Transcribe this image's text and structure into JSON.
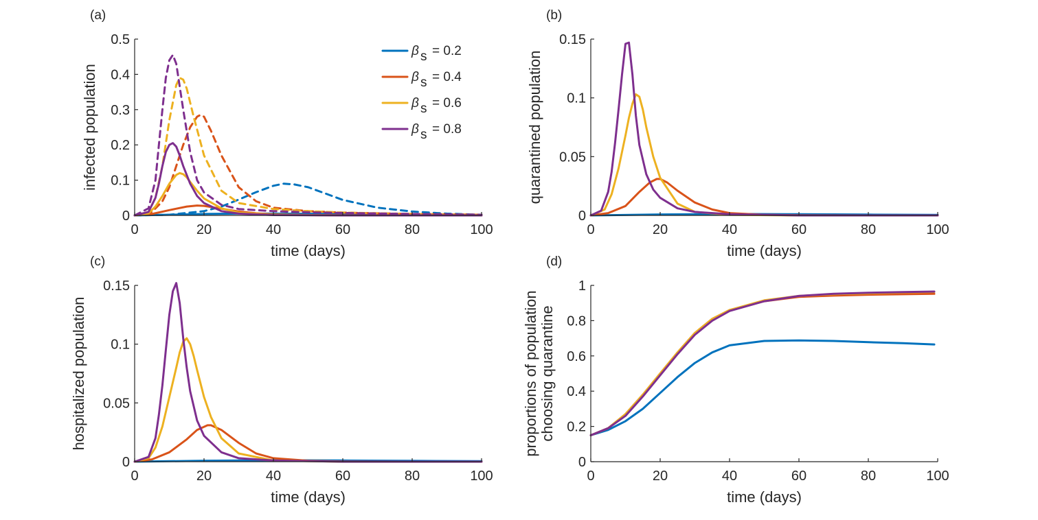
{
  "colors": {
    "series": [
      "#0072BD",
      "#D95319",
      "#EDB120",
      "#7E2F8E"
    ],
    "axis": "#262626"
  },
  "legend": {
    "symbol": "β",
    "subscript": "s",
    "entries": [
      "= 0.2",
      "= 0.4",
      "= 0.6",
      "= 0.8"
    ]
  },
  "chart_data": [
    {
      "id": "a",
      "panel_label": "(a)",
      "type": "line",
      "xlabel": "time (days)",
      "ylabel": "infected population",
      "xlim": [
        0,
        100
      ],
      "ylim": [
        0,
        0.5
      ],
      "xticks": [
        0,
        20,
        40,
        60,
        80,
        100
      ],
      "yticks": [
        0,
        0.1,
        0.2,
        0.3,
        0.4,
        0.5
      ],
      "ytick_labels": [
        "0",
        "0.1",
        "0.2",
        "0.3",
        "0.4",
        "0.5"
      ],
      "series": [
        {
          "name": "βs = 0.2",
          "style": "solid",
          "x": [
            0,
            5,
            10,
            15,
            20,
            30,
            40,
            60,
            80,
            100
          ],
          "y": [
            0,
            0.001,
            0.002,
            0.003,
            0.004,
            0.005,
            0.005,
            0.004,
            0.003,
            0.002
          ]
        },
        {
          "name": "βs = 0.2",
          "style": "dashed",
          "x": [
            0,
            10,
            20,
            25,
            30,
            35,
            40,
            43,
            46,
            50,
            55,
            60,
            70,
            80,
            90,
            100
          ],
          "y": [
            0,
            0.002,
            0.012,
            0.025,
            0.045,
            0.066,
            0.084,
            0.09,
            0.088,
            0.08,
            0.062,
            0.044,
            0.022,
            0.011,
            0.005,
            0.002
          ]
        },
        {
          "name": "βs = 0.4",
          "style": "solid",
          "x": [
            0,
            5,
            10,
            15,
            18,
            20,
            25,
            30,
            35,
            40,
            50,
            60,
            80,
            100
          ],
          "y": [
            0,
            0.004,
            0.015,
            0.025,
            0.028,
            0.027,
            0.019,
            0.011,
            0.006,
            0.003,
            0.001,
            0.0005,
            0.0002,
            0
          ]
        },
        {
          "name": "βs = 0.4",
          "style": "dashed",
          "x": [
            0,
            5,
            8,
            10,
            12,
            14,
            16,
            18,
            19,
            20,
            22,
            25,
            30,
            35,
            40,
            50,
            60,
            80,
            100
          ],
          "y": [
            0,
            0.01,
            0.04,
            0.08,
            0.14,
            0.2,
            0.25,
            0.28,
            0.285,
            0.28,
            0.24,
            0.17,
            0.08,
            0.04,
            0.022,
            0.012,
            0.008,
            0.004,
            0.002
          ]
        },
        {
          "name": "βs = 0.6",
          "style": "solid",
          "x": [
            0,
            4,
            6,
            8,
            10,
            12,
            13,
            14,
            15,
            16,
            18,
            20,
            25,
            30,
            40,
            60,
            100
          ],
          "y": [
            0,
            0.006,
            0.025,
            0.055,
            0.09,
            0.115,
            0.12,
            0.117,
            0.108,
            0.095,
            0.07,
            0.048,
            0.02,
            0.008,
            0.002,
            0,
            0
          ]
        },
        {
          "name": "βs = 0.6",
          "style": "dashed",
          "x": [
            0,
            4,
            6,
            8,
            10,
            12,
            13,
            14,
            15,
            17,
            20,
            25,
            30,
            40,
            50,
            60,
            80,
            100
          ],
          "y": [
            0,
            0.01,
            0.05,
            0.14,
            0.27,
            0.37,
            0.39,
            0.385,
            0.36,
            0.28,
            0.17,
            0.07,
            0.035,
            0.018,
            0.012,
            0.008,
            0.004,
            0.002
          ]
        },
        {
          "name": "βs = 0.8",
          "style": "solid",
          "x": [
            0,
            4,
            6,
            7,
            8,
            9,
            10,
            11,
            12,
            13,
            14,
            16,
            18,
            20,
            25,
            30,
            40,
            60,
            100
          ],
          "y": [
            0,
            0.01,
            0.05,
            0.09,
            0.14,
            0.18,
            0.2,
            0.205,
            0.195,
            0.17,
            0.14,
            0.09,
            0.055,
            0.035,
            0.012,
            0.005,
            0.001,
            0,
            0
          ]
        },
        {
          "name": "βs = 0.8",
          "style": "dashed",
          "x": [
            0,
            4,
            6,
            7,
            8,
            9,
            10,
            11,
            12,
            14,
            16,
            18,
            20,
            25,
            30,
            40,
            50,
            60,
            80,
            100
          ],
          "y": [
            0,
            0.02,
            0.1,
            0.2,
            0.3,
            0.39,
            0.44,
            0.455,
            0.43,
            0.3,
            0.18,
            0.1,
            0.065,
            0.03,
            0.018,
            0.012,
            0.009,
            0.007,
            0.004,
            0.002
          ]
        }
      ]
    },
    {
      "id": "b",
      "panel_label": "(b)",
      "type": "line",
      "xlabel": "time (days)",
      "ylabel": "quarantined population",
      "xlim": [
        0,
        100
      ],
      "ylim": [
        0,
        0.15
      ],
      "xticks": [
        0,
        20,
        40,
        60,
        80,
        100
      ],
      "yticks": [
        0,
        0.05,
        0.1,
        0.15
      ],
      "ytick_labels": [
        "0",
        "0.05",
        "0.1",
        "0.15"
      ],
      "series": [
        {
          "name": "βs = 0.2",
          "style": "solid",
          "x": [
            0,
            20,
            40,
            60,
            80,
            100
          ],
          "y": [
            0,
            0.0008,
            0.0012,
            0.001,
            0.0007,
            0.0004
          ]
        },
        {
          "name": "βs = 0.4",
          "style": "solid",
          "x": [
            0,
            5,
            10,
            14,
            17,
            19,
            20,
            22,
            25,
            30,
            35,
            40,
            50,
            60,
            80,
            100
          ],
          "y": [
            0,
            0.002,
            0.008,
            0.02,
            0.028,
            0.031,
            0.031,
            0.028,
            0.021,
            0.011,
            0.005,
            0.002,
            0.0005,
            0.0002,
            0,
            0
          ]
        },
        {
          "name": "βs = 0.6",
          "style": "solid",
          "x": [
            0,
            4,
            6,
            8,
            10,
            11,
            12,
            13,
            14,
            15,
            16,
            18,
            20,
            25,
            30,
            40,
            60,
            100
          ],
          "y": [
            0,
            0.005,
            0.018,
            0.04,
            0.068,
            0.083,
            0.095,
            0.103,
            0.101,
            0.09,
            0.075,
            0.05,
            0.032,
            0.01,
            0.003,
            0.0005,
            0,
            0
          ]
        },
        {
          "name": "βs = 0.8",
          "style": "solid",
          "x": [
            0,
            3,
            5,
            6,
            7,
            8,
            9,
            10,
            11,
            12,
            13,
            14,
            16,
            18,
            20,
            25,
            30,
            40,
            60,
            100
          ],
          "y": [
            0,
            0.004,
            0.02,
            0.037,
            0.062,
            0.09,
            0.12,
            0.146,
            0.147,
            0.12,
            0.085,
            0.06,
            0.035,
            0.022,
            0.015,
            0.006,
            0.003,
            0.001,
            0,
            0
          ]
        }
      ]
    },
    {
      "id": "c",
      "panel_label": "(c)",
      "type": "line",
      "xlabel": "time (days)",
      "ylabel": "hospitalized population",
      "xlim": [
        0,
        100
      ],
      "ylim": [
        0,
        0.15
      ],
      "xticks": [
        0,
        20,
        40,
        60,
        80,
        100
      ],
      "yticks": [
        0,
        0.05,
        0.1,
        0.15
      ],
      "ytick_labels": [
        "0",
        "0.05",
        "0.1",
        "0.15"
      ],
      "series": [
        {
          "name": "βs = 0.2",
          "style": "solid",
          "x": [
            0,
            20,
            40,
            60,
            80,
            100
          ],
          "y": [
            0,
            0.0008,
            0.0012,
            0.001,
            0.0007,
            0.0004
          ]
        },
        {
          "name": "βs = 0.4",
          "style": "solid",
          "x": [
            0,
            5,
            10,
            15,
            18,
            21,
            22,
            25,
            30,
            35,
            40,
            50,
            60,
            80,
            100
          ],
          "y": [
            0,
            0.002,
            0.008,
            0.019,
            0.027,
            0.031,
            0.031,
            0.027,
            0.016,
            0.007,
            0.003,
            0.0008,
            0.0002,
            0,
            0
          ]
        },
        {
          "name": "βs = 0.6",
          "style": "solid",
          "x": [
            0,
            4,
            6,
            8,
            10,
            12,
            13,
            14,
            15,
            16,
            17,
            18,
            20,
            22,
            25,
            30,
            40,
            60,
            100
          ],
          "y": [
            0,
            0.003,
            0.012,
            0.03,
            0.055,
            0.08,
            0.093,
            0.102,
            0.105,
            0.1,
            0.09,
            0.078,
            0.055,
            0.038,
            0.02,
            0.007,
            0.001,
            0,
            0
          ]
        },
        {
          "name": "βs = 0.8",
          "style": "solid",
          "x": [
            0,
            4,
            6,
            7,
            8,
            9,
            10,
            11,
            12,
            13,
            14,
            15,
            16,
            18,
            20,
            25,
            30,
            40,
            60,
            100
          ],
          "y": [
            0,
            0.004,
            0.02,
            0.04,
            0.065,
            0.095,
            0.125,
            0.145,
            0.152,
            0.135,
            0.105,
            0.08,
            0.06,
            0.035,
            0.022,
            0.008,
            0.003,
            0.001,
            0,
            0
          ]
        }
      ]
    },
    {
      "id": "d",
      "panel_label": "(d)",
      "type": "line",
      "xlabel": "time (days)",
      "ylabel": "proportions of population",
      "ylabel2": "choosing quarantine",
      "xlim": [
        0,
        100
      ],
      "ylim": [
        0,
        1
      ],
      "xticks": [
        0,
        20,
        40,
        60,
        80,
        100
      ],
      "yticks": [
        0,
        0.2,
        0.4,
        0.6,
        0.8,
        1
      ],
      "ytick_labels": [
        "0",
        "0.2",
        "0.4",
        "0.6",
        "0.8",
        "1"
      ],
      "series": [
        {
          "name": "βs = 0.2",
          "style": "solid",
          "x": [
            0,
            5,
            10,
            15,
            20,
            25,
            30,
            35,
            40,
            50,
            60,
            70,
            80,
            90,
            99
          ],
          "y": [
            0.15,
            0.18,
            0.23,
            0.3,
            0.39,
            0.48,
            0.56,
            0.62,
            0.66,
            0.685,
            0.688,
            0.685,
            0.678,
            0.672,
            0.665
          ]
        },
        {
          "name": "βs = 0.4",
          "style": "solid",
          "x": [
            0,
            5,
            10,
            15,
            20,
            25,
            30,
            35,
            40,
            50,
            60,
            70,
            80,
            90,
            99
          ],
          "y": [
            0.15,
            0.19,
            0.27,
            0.38,
            0.5,
            0.62,
            0.73,
            0.81,
            0.86,
            0.91,
            0.935,
            0.942,
            0.947,
            0.95,
            0.952
          ]
        },
        {
          "name": "βs = 0.6",
          "style": "solid",
          "x": [
            0,
            5,
            10,
            15,
            20,
            25,
            30,
            35,
            40,
            50,
            60,
            70,
            80,
            90,
            99
          ],
          "y": [
            0.15,
            0.19,
            0.27,
            0.38,
            0.5,
            0.62,
            0.73,
            0.81,
            0.86,
            0.915,
            0.94,
            0.95,
            0.955,
            0.96,
            0.963
          ]
        },
        {
          "name": "βs = 0.8",
          "style": "solid",
          "x": [
            0,
            5,
            10,
            15,
            20,
            25,
            30,
            35,
            40,
            50,
            60,
            70,
            80,
            90,
            99
          ],
          "y": [
            0.15,
            0.19,
            0.26,
            0.37,
            0.49,
            0.61,
            0.72,
            0.8,
            0.855,
            0.91,
            0.94,
            0.952,
            0.958,
            0.962,
            0.965
          ]
        }
      ]
    }
  ]
}
